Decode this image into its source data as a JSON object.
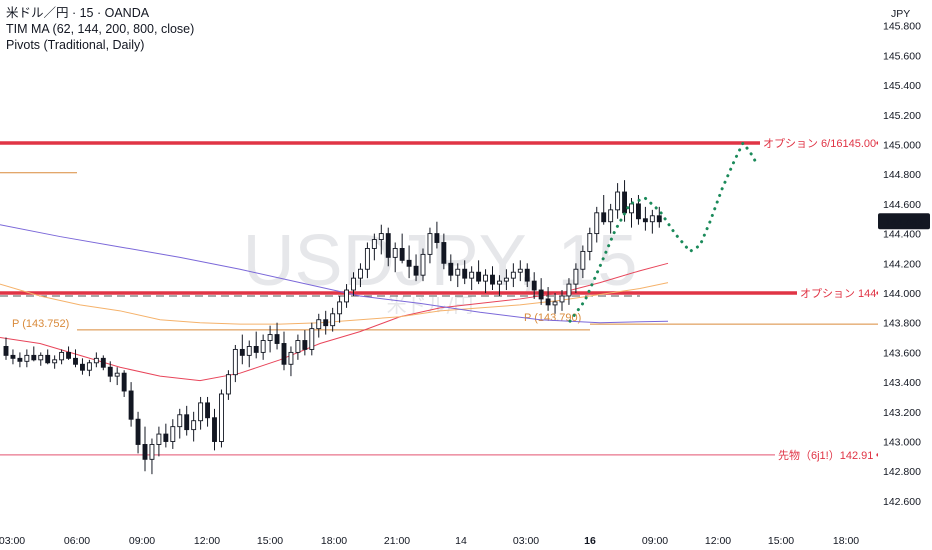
{
  "legend": {
    "line1": "米ドル／円 · 15 · OANDA",
    "line2": "TIM MA (62, 144, 200, 800, close)",
    "line3": "Pivots (Traditional, Daily)"
  },
  "watermark": {
    "main": "USDJPY, 15",
    "sub": "米ドル/円"
  },
  "currency": "JPY",
  "current_price": "144.483",
  "chart_data": {
    "type": "candlestick",
    "ylim": [
      142.5,
      145.9
    ],
    "y_ticks": [
      "145.800",
      "145.600",
      "145.400",
      "145.200",
      "145.000",
      "144.800",
      "144.600",
      "144.400",
      "144.200",
      "144.000",
      "143.800",
      "143.600",
      "143.400",
      "143.200",
      "143.000",
      "142.800",
      "142.600"
    ],
    "x_ticks": [
      {
        "label": "03:00",
        "bold": false
      },
      {
        "label": "06:00",
        "bold": false
      },
      {
        "label": "09:00",
        "bold": false
      },
      {
        "label": "12:00",
        "bold": false
      },
      {
        "label": "15:00",
        "bold": false
      },
      {
        "label": "18:00",
        "bold": false
      },
      {
        "label": "21:00",
        "bold": false
      },
      {
        "label": "14",
        "bold": false
      },
      {
        "label": "03:00",
        "bold": false
      },
      {
        "label": "16",
        "bold": true
      },
      {
        "label": "09:00",
        "bold": false
      },
      {
        "label": "12:00",
        "bold": false
      },
      {
        "label": "15:00",
        "bold": false
      },
      {
        "label": "18:00",
        "bold": false
      }
    ],
    "levels": [
      {
        "name": "option-145-line",
        "price": 145.01,
        "label": "オプション 6/16145.00",
        "color": "#e03445",
        "width": 3.5
      },
      {
        "name": "option-144-line",
        "price": 144.0,
        "label": "オプション 144",
        "color": "#e03445",
        "width": 3.5
      },
      {
        "name": "futures-line",
        "price": 142.91,
        "label": "先物（6j1!）142.91",
        "color": "#e8748c",
        "width": 1.2
      }
    ],
    "pivots": [
      {
        "name": "pivot-day1",
        "label": "P (143.752)",
        "price": 143.752,
        "color": "#d98a3a"
      },
      {
        "name": "pivot-day2",
        "label": "P (143.790)",
        "price": 143.79,
        "color": "#d98a3a"
      }
    ],
    "prev_pivot_level": 144.81,
    "colors": {
      "up": "#ffffff",
      "down": "#131722",
      "ma_red": "#e8455a",
      "ma_orange": "#f5b26b",
      "ma_purple": "#7b68d9",
      "forecast": "#1b8a5a"
    }
  }
}
